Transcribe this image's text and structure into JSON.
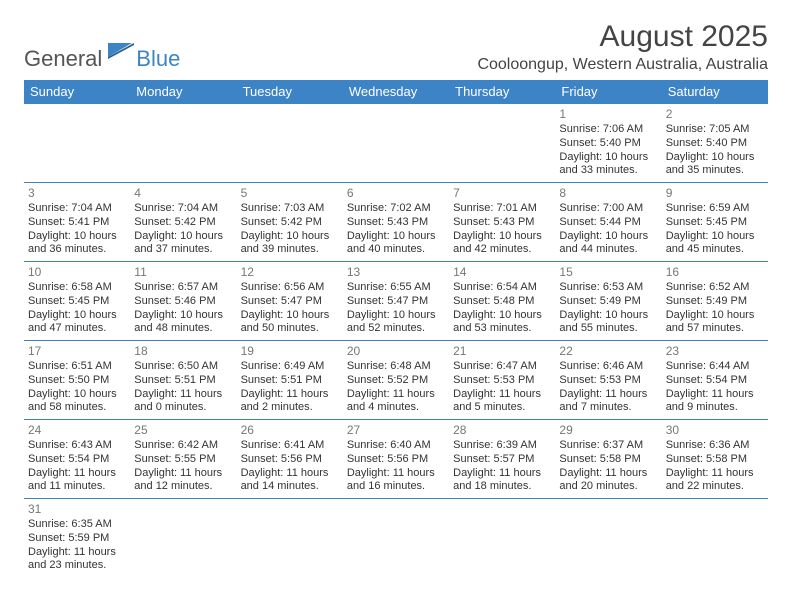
{
  "colors": {
    "brand_blue": "#3d84c6",
    "text_gray": "#555555",
    "header_bg": "#3d84c6",
    "header_fg": "#ffffff",
    "cell_border": "#3d84c6",
    "daynum_color": "#777777",
    "body_text": "#333333",
    "background": "#ffffff"
  },
  "typography": {
    "body_font": "Arial",
    "month_title_size_pt": 22,
    "location_size_pt": 12,
    "header_size_pt": 10,
    "cell_size_pt": 8
  },
  "logo": {
    "general": "General",
    "blue": "Blue"
  },
  "header": {
    "month_title": "August 2025",
    "location": "Cooloongup, Western Australia, Australia"
  },
  "weekdays": [
    "Sunday",
    "Monday",
    "Tuesday",
    "Wednesday",
    "Thursday",
    "Friday",
    "Saturday"
  ],
  "weeks": [
    [
      null,
      null,
      null,
      null,
      null,
      {
        "day": "1",
        "sunrise": "Sunrise: 7:06 AM",
        "sunset": "Sunset: 5:40 PM",
        "day1": "Daylight: 10 hours",
        "day2": "and 33 minutes."
      },
      {
        "day": "2",
        "sunrise": "Sunrise: 7:05 AM",
        "sunset": "Sunset: 5:40 PM",
        "day1": "Daylight: 10 hours",
        "day2": "and 35 minutes."
      }
    ],
    [
      {
        "day": "3",
        "sunrise": "Sunrise: 7:04 AM",
        "sunset": "Sunset: 5:41 PM",
        "day1": "Daylight: 10 hours",
        "day2": "and 36 minutes."
      },
      {
        "day": "4",
        "sunrise": "Sunrise: 7:04 AM",
        "sunset": "Sunset: 5:42 PM",
        "day1": "Daylight: 10 hours",
        "day2": "and 37 minutes."
      },
      {
        "day": "5",
        "sunrise": "Sunrise: 7:03 AM",
        "sunset": "Sunset: 5:42 PM",
        "day1": "Daylight: 10 hours",
        "day2": "and 39 minutes."
      },
      {
        "day": "6",
        "sunrise": "Sunrise: 7:02 AM",
        "sunset": "Sunset: 5:43 PM",
        "day1": "Daylight: 10 hours",
        "day2": "and 40 minutes."
      },
      {
        "day": "7",
        "sunrise": "Sunrise: 7:01 AM",
        "sunset": "Sunset: 5:43 PM",
        "day1": "Daylight: 10 hours",
        "day2": "and 42 minutes."
      },
      {
        "day": "8",
        "sunrise": "Sunrise: 7:00 AM",
        "sunset": "Sunset: 5:44 PM",
        "day1": "Daylight: 10 hours",
        "day2": "and 44 minutes."
      },
      {
        "day": "9",
        "sunrise": "Sunrise: 6:59 AM",
        "sunset": "Sunset: 5:45 PM",
        "day1": "Daylight: 10 hours",
        "day2": "and 45 minutes."
      }
    ],
    [
      {
        "day": "10",
        "sunrise": "Sunrise: 6:58 AM",
        "sunset": "Sunset: 5:45 PM",
        "day1": "Daylight: 10 hours",
        "day2": "and 47 minutes."
      },
      {
        "day": "11",
        "sunrise": "Sunrise: 6:57 AM",
        "sunset": "Sunset: 5:46 PM",
        "day1": "Daylight: 10 hours",
        "day2": "and 48 minutes."
      },
      {
        "day": "12",
        "sunrise": "Sunrise: 6:56 AM",
        "sunset": "Sunset: 5:47 PM",
        "day1": "Daylight: 10 hours",
        "day2": "and 50 minutes."
      },
      {
        "day": "13",
        "sunrise": "Sunrise: 6:55 AM",
        "sunset": "Sunset: 5:47 PM",
        "day1": "Daylight: 10 hours",
        "day2": "and 52 minutes."
      },
      {
        "day": "14",
        "sunrise": "Sunrise: 6:54 AM",
        "sunset": "Sunset: 5:48 PM",
        "day1": "Daylight: 10 hours",
        "day2": "and 53 minutes."
      },
      {
        "day": "15",
        "sunrise": "Sunrise: 6:53 AM",
        "sunset": "Sunset: 5:49 PM",
        "day1": "Daylight: 10 hours",
        "day2": "and 55 minutes."
      },
      {
        "day": "16",
        "sunrise": "Sunrise: 6:52 AM",
        "sunset": "Sunset: 5:49 PM",
        "day1": "Daylight: 10 hours",
        "day2": "and 57 minutes."
      }
    ],
    [
      {
        "day": "17",
        "sunrise": "Sunrise: 6:51 AM",
        "sunset": "Sunset: 5:50 PM",
        "day1": "Daylight: 10 hours",
        "day2": "and 58 minutes."
      },
      {
        "day": "18",
        "sunrise": "Sunrise: 6:50 AM",
        "sunset": "Sunset: 5:51 PM",
        "day1": "Daylight: 11 hours",
        "day2": "and 0 minutes."
      },
      {
        "day": "19",
        "sunrise": "Sunrise: 6:49 AM",
        "sunset": "Sunset: 5:51 PM",
        "day1": "Daylight: 11 hours",
        "day2": "and 2 minutes."
      },
      {
        "day": "20",
        "sunrise": "Sunrise: 6:48 AM",
        "sunset": "Sunset: 5:52 PM",
        "day1": "Daylight: 11 hours",
        "day2": "and 4 minutes."
      },
      {
        "day": "21",
        "sunrise": "Sunrise: 6:47 AM",
        "sunset": "Sunset: 5:53 PM",
        "day1": "Daylight: 11 hours",
        "day2": "and 5 minutes."
      },
      {
        "day": "22",
        "sunrise": "Sunrise: 6:46 AM",
        "sunset": "Sunset: 5:53 PM",
        "day1": "Daylight: 11 hours",
        "day2": "and 7 minutes."
      },
      {
        "day": "23",
        "sunrise": "Sunrise: 6:44 AM",
        "sunset": "Sunset: 5:54 PM",
        "day1": "Daylight: 11 hours",
        "day2": "and 9 minutes."
      }
    ],
    [
      {
        "day": "24",
        "sunrise": "Sunrise: 6:43 AM",
        "sunset": "Sunset: 5:54 PM",
        "day1": "Daylight: 11 hours",
        "day2": "and 11 minutes."
      },
      {
        "day": "25",
        "sunrise": "Sunrise: 6:42 AM",
        "sunset": "Sunset: 5:55 PM",
        "day1": "Daylight: 11 hours",
        "day2": "and 12 minutes."
      },
      {
        "day": "26",
        "sunrise": "Sunrise: 6:41 AM",
        "sunset": "Sunset: 5:56 PM",
        "day1": "Daylight: 11 hours",
        "day2": "and 14 minutes."
      },
      {
        "day": "27",
        "sunrise": "Sunrise: 6:40 AM",
        "sunset": "Sunset: 5:56 PM",
        "day1": "Daylight: 11 hours",
        "day2": "and 16 minutes."
      },
      {
        "day": "28",
        "sunrise": "Sunrise: 6:39 AM",
        "sunset": "Sunset: 5:57 PM",
        "day1": "Daylight: 11 hours",
        "day2": "and 18 minutes."
      },
      {
        "day": "29",
        "sunrise": "Sunrise: 6:37 AM",
        "sunset": "Sunset: 5:58 PM",
        "day1": "Daylight: 11 hours",
        "day2": "and 20 minutes."
      },
      {
        "day": "30",
        "sunrise": "Sunrise: 6:36 AM",
        "sunset": "Sunset: 5:58 PM",
        "day1": "Daylight: 11 hours",
        "day2": "and 22 minutes."
      }
    ],
    [
      {
        "day": "31",
        "sunrise": "Sunrise: 6:35 AM",
        "sunset": "Sunset: 5:59 PM",
        "day1": "Daylight: 11 hours",
        "day2": "and 23 minutes."
      },
      null,
      null,
      null,
      null,
      null,
      null
    ]
  ]
}
